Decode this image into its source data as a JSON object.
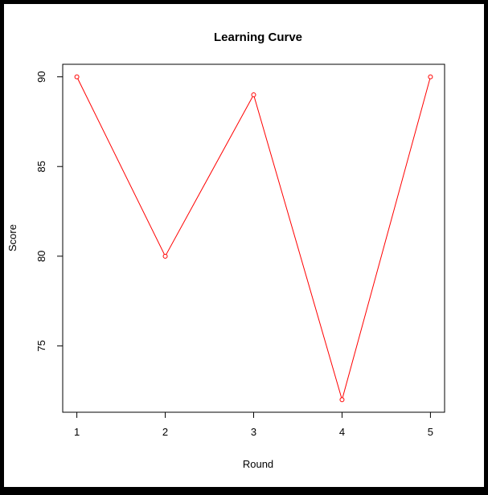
{
  "chart_data": {
    "type": "line",
    "title": "Learning Curve",
    "xlabel": "Round",
    "ylabel": "Score",
    "x": [
      1,
      2,
      3,
      4,
      5
    ],
    "series": [
      {
        "values": [
          90,
          80,
          89,
          72,
          90
        ],
        "color": "#ff0000",
        "marker": "open-circle"
      }
    ],
    "xticks": [
      "1",
      "2",
      "3",
      "4",
      "5"
    ],
    "yticks": [
      "75",
      "80",
      "85",
      "90"
    ],
    "ylim": [
      71.3,
      90.7
    ],
    "xlim": [
      0.84,
      5.16
    ],
    "grid": false,
    "legend": "none"
  }
}
